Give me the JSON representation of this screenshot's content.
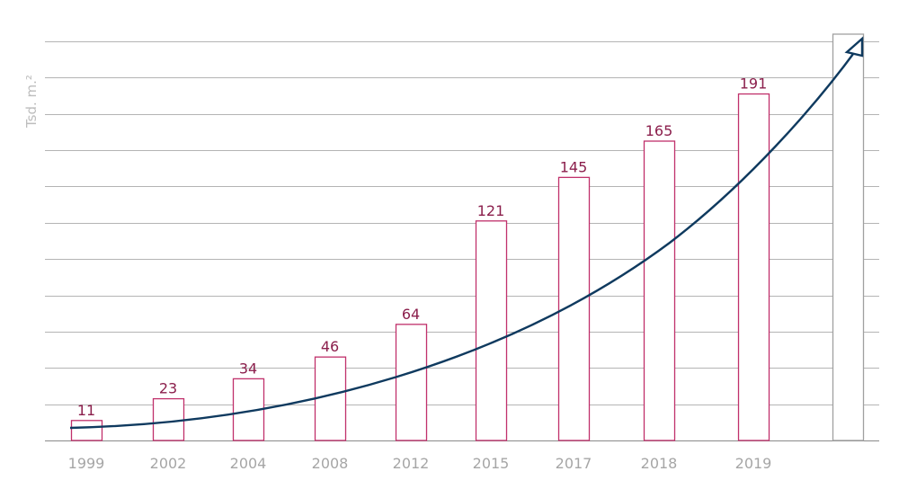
{
  "chart_data": {
    "type": "bar",
    "categories": [
      "1999",
      "2002",
      "2004",
      "2008",
      "2012",
      "2015",
      "2017",
      "2018",
      "2019",
      ""
    ],
    "values": [
      11,
      23,
      34,
      46,
      64,
      121,
      145,
      165,
      191,
      null
    ],
    "ylabel": "Tsd. m.²",
    "ylim": [
      0,
      220
    ],
    "grid": true,
    "trend_line": {
      "shape": "exponential curve with arrowhead",
      "color": "#0f3a5f"
    },
    "colors": {
      "bar_outline": "#c0306b",
      "value_label": "#8b1f4c",
      "tick_label": "#a6a6a6",
      "ylabel": "#bdbdbd",
      "grid": "#b4b4b4",
      "ghost_bar_outline": "#a0a0a0",
      "trend": "#0f3a5f"
    }
  }
}
